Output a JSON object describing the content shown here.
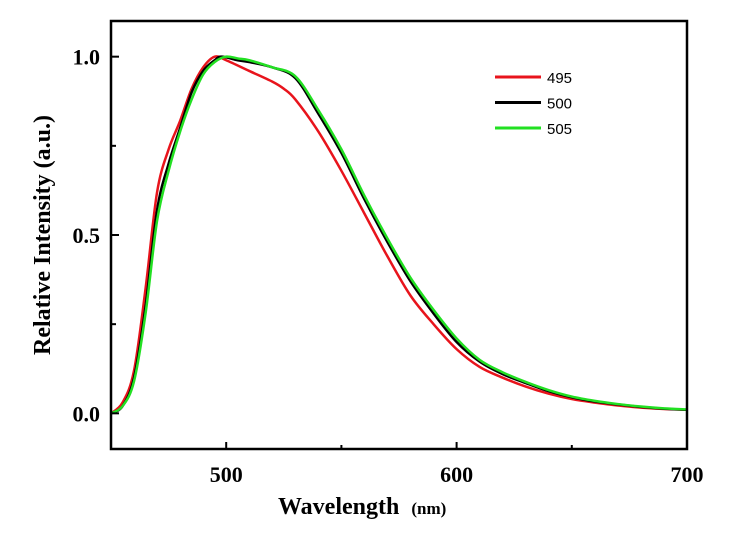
{
  "chart_data": {
    "type": "line",
    "title": "",
    "xlabel": "Wavelength",
    "xlabel_unit": "(nm)",
    "ylabel": "Relative Intensity (a.u.)",
    "xlim": [
      450,
      700
    ],
    "ylim": [
      -0.1,
      1.1
    ],
    "xticks": [
      500,
      600,
      700
    ],
    "xtick_labels": [
      "500",
      "600",
      "700"
    ],
    "xminor": [
      550,
      650
    ],
    "yticks": [
      0.0,
      0.5,
      1.0
    ],
    "ytick_labels": [
      "0.0",
      "0.5",
      "1.0"
    ],
    "yminor": [
      0.25,
      0.75
    ],
    "grid": false,
    "legend_position": "top-right",
    "series": [
      {
        "name": "495",
        "color": "#e8141c",
        "x": [
          450,
          455,
          460,
          465,
          470,
          475,
          480,
          485,
          490,
          495,
          500,
          510,
          520,
          525,
          530,
          540,
          550,
          560,
          570,
          580,
          590,
          600,
          610,
          620,
          630,
          640,
          650,
          660,
          670,
          680,
          690,
          700
        ],
        "y": [
          0.0,
          0.03,
          0.12,
          0.35,
          0.62,
          0.74,
          0.82,
          0.91,
          0.97,
          1.0,
          0.99,
          0.96,
          0.93,
          0.91,
          0.88,
          0.79,
          0.68,
          0.56,
          0.44,
          0.33,
          0.25,
          0.18,
          0.13,
          0.1,
          0.075,
          0.055,
          0.04,
          0.03,
          0.022,
          0.016,
          0.012,
          0.01
        ]
      },
      {
        "name": "500",
        "color": "#000000",
        "x": [
          450,
          455,
          460,
          465,
          470,
          475,
          480,
          485,
          490,
          495,
          498,
          505,
          510,
          520,
          530,
          540,
          550,
          560,
          570,
          580,
          590,
          600,
          610,
          620,
          630,
          640,
          650,
          660,
          670,
          680,
          690,
          700
        ],
        "y": [
          0.0,
          0.02,
          0.1,
          0.3,
          0.57,
          0.7,
          0.8,
          0.9,
          0.96,
          0.99,
          1.0,
          0.99,
          0.985,
          0.97,
          0.94,
          0.84,
          0.73,
          0.6,
          0.48,
          0.37,
          0.28,
          0.2,
          0.145,
          0.11,
          0.085,
          0.062,
          0.045,
          0.033,
          0.025,
          0.018,
          0.013,
          0.01
        ]
      },
      {
        "name": "505",
        "color": "#22e022",
        "x": [
          450,
          455,
          460,
          465,
          470,
          475,
          480,
          485,
          490,
          495,
          500,
          505,
          510,
          520,
          530,
          540,
          550,
          560,
          570,
          580,
          590,
          600,
          610,
          620,
          630,
          640,
          650,
          660,
          670,
          680,
          690,
          700
        ],
        "y": [
          0.0,
          0.02,
          0.09,
          0.28,
          0.54,
          0.68,
          0.79,
          0.88,
          0.95,
          0.985,
          1.0,
          0.995,
          0.99,
          0.97,
          0.945,
          0.85,
          0.74,
          0.61,
          0.49,
          0.38,
          0.29,
          0.21,
          0.15,
          0.115,
          0.088,
          0.065,
          0.047,
          0.035,
          0.026,
          0.019,
          0.014,
          0.011
        ]
      }
    ]
  }
}
